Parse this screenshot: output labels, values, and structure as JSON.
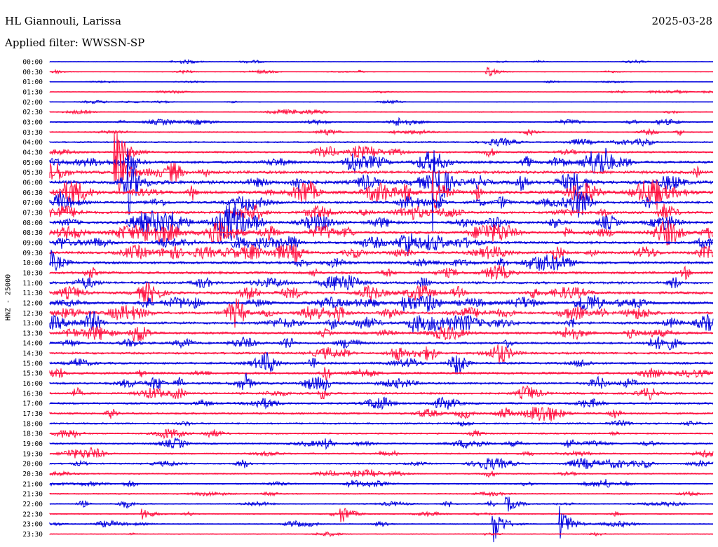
{
  "header": {
    "station": "HL Giannouli, Larissa",
    "date": "2025-03-28",
    "filter": "Applied filter: WWSSN-SP"
  },
  "chart_data": {
    "type": "helicorder",
    "channel_label": "HNZ - 25000",
    "colors": [
      "#0000dd",
      "#ff1040"
    ],
    "row_labels": [
      "00:00",
      "00:30",
      "01:00",
      "01:30",
      "02:00",
      "02:30",
      "03:00",
      "03:30",
      "04:00",
      "04:30",
      "05:00",
      "05:30",
      "06:00",
      "06:30",
      "07:00",
      "07:30",
      "08:00",
      "08:30",
      "09:00",
      "09:30",
      "10:00",
      "10:30",
      "11:00",
      "11:30",
      "12:00",
      "12:30",
      "13:00",
      "13:30",
      "14:00",
      "14:30",
      "15:00",
      "15:30",
      "16:00",
      "16:30",
      "17:00",
      "17:30",
      "18:00",
      "18:30",
      "19:00",
      "19:30",
      "20:00",
      "20:30",
      "21:00",
      "21:30",
      "22:00",
      "22:30",
      "23:00",
      "23:30"
    ],
    "noise_level": [
      0.4,
      0.5,
      0.5,
      0.5,
      0.5,
      0.7,
      0.9,
      0.9,
      1.2,
      1.5,
      2.0,
      2.4,
      2.8,
      2.4,
      2.0,
      2.0,
      2.0,
      2.0,
      2.0,
      2.0,
      2.0,
      2.0,
      2.0,
      2.0,
      2.0,
      2.0,
      2.0,
      1.9,
      1.8,
      1.8,
      1.8,
      1.8,
      1.8,
      1.7,
      1.6,
      1.5,
      1.4,
      1.3,
      1.3,
      1.2,
      1.2,
      1.1,
      1.0,
      1.0,
      0.9,
      0.8,
      0.8,
      0.7
    ],
    "events": [
      {
        "row": 9,
        "x": 0.1,
        "amp": 50
      },
      {
        "row": 11,
        "x": 0.1,
        "amp": 55
      },
      {
        "row": 12,
        "x": 0.12,
        "amp": 40
      },
      {
        "row": 12,
        "x": 0.58,
        "amp": 60
      },
      {
        "row": 13,
        "x": 0.58,
        "amp": 30
      },
      {
        "row": 1,
        "x": 0.66,
        "amp": 8
      },
      {
        "row": 44,
        "x": 0.69,
        "amp": 12
      },
      {
        "row": 46,
        "x": 0.67,
        "amp": 28
      },
      {
        "row": 46,
        "x": 0.77,
        "amp": 28
      },
      {
        "row": 45,
        "x": 0.44,
        "amp": 14
      },
      {
        "row": 45,
        "x": 0.14,
        "amp": 10
      }
    ]
  }
}
